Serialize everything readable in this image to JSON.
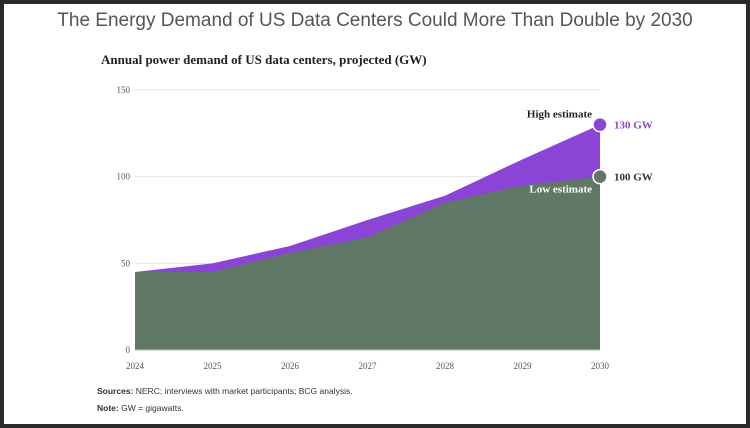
{
  "title": "The Energy Demand of US Data Centers Could More Than Double by 2030",
  "footer": {
    "sources_label": "Sources:",
    "sources_text": "NERC; interviews with market participants; BCG analysis.",
    "note_label": "Note:",
    "note_text": "GW = gigawatts."
  },
  "chart_data": {
    "type": "area",
    "title": "Annual power demand of US data centers, projected (GW)",
    "x": [
      "2024",
      "2025",
      "2026",
      "2027",
      "2028",
      "2029",
      "2030"
    ],
    "ylim": [
      0,
      150
    ],
    "yticks": [
      "0",
      "50",
      "100",
      "150"
    ],
    "grid": true,
    "series": [
      {
        "name": "High estimate",
        "values": [
          45,
          50,
          60,
          75,
          89,
          110,
          130
        ],
        "color": "#8a44d6",
        "end_label": "130 GW"
      },
      {
        "name": "Low estimate",
        "values": [
          45,
          45,
          56,
          65,
          85,
          95,
          100
        ],
        "color": "#627866",
        "end_label": "100 GW"
      }
    ]
  }
}
